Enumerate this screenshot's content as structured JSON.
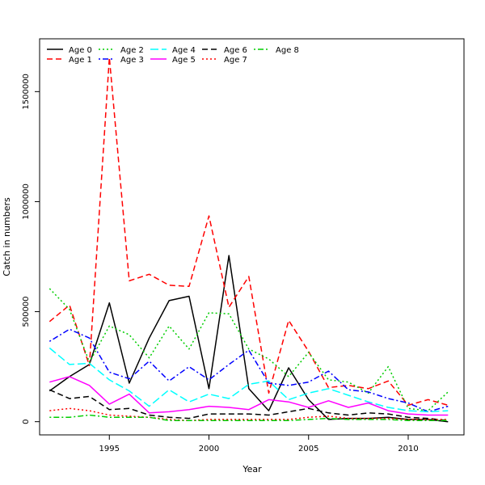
{
  "chart_data": {
    "type": "line",
    "title": "",
    "xlabel": "Year",
    "ylabel": "Catch in numbers",
    "xlim": [
      1991.5,
      2012.8
    ],
    "ylim": [
      -60000,
      1740000
    ],
    "xticks": [
      1995,
      2000,
      2005,
      2010
    ],
    "yticks": [
      0,
      500000,
      1000000,
      1500000
    ],
    "ytick_labels": [
      "0",
      "500000",
      "1000000",
      "1500000"
    ],
    "grid": false,
    "legend_position": "top-left",
    "x": [
      1992,
      1993,
      1994,
      1995,
      1996,
      1997,
      1998,
      1999,
      2000,
      2001,
      2002,
      2003,
      2004,
      2005,
      2006,
      2007,
      2008,
      2009,
      2010,
      2011,
      2012
    ],
    "series": [
      {
        "name": "Age 0",
        "color": "#000000",
        "dash": "solid",
        "values": [
          140000,
          205000,
          260000,
          540000,
          175000,
          380000,
          550000,
          570000,
          150000,
          755000,
          150000,
          50000,
          245000,
          100000,
          10000,
          15000,
          15000,
          20000,
          10000,
          10000,
          0
        ]
      },
      {
        "name": "Age 1",
        "color": "#ff0000",
        "dash": "dashed",
        "values": [
          455000,
          530000,
          255000,
          1655000,
          640000,
          670000,
          620000,
          615000,
          935000,
          520000,
          660000,
          130000,
          460000,
          320000,
          155000,
          165000,
          150000,
          185000,
          75000,
          100000,
          75000
        ]
      },
      {
        "name": "Age 2",
        "color": "#00cd00",
        "dash": "dotted",
        "values": [
          605000,
          510000,
          270000,
          435000,
          395000,
          290000,
          435000,
          330000,
          495000,
          490000,
          330000,
          285000,
          205000,
          315000,
          190000,
          180000,
          130000,
          250000,
          60000,
          50000,
          135000
        ]
      },
      {
        "name": "Age 3",
        "color": "#0000ff",
        "dash": "dashdot",
        "values": [
          365000,
          420000,
          380000,
          225000,
          195000,
          275000,
          185000,
          250000,
          190000,
          260000,
          325000,
          175000,
          165000,
          180000,
          230000,
          145000,
          135000,
          105000,
          85000,
          45000,
          70000
        ]
      },
      {
        "name": "Age 4",
        "color": "#00ffff",
        "dash": "longdash",
        "values": [
          335000,
          260000,
          265000,
          190000,
          140000,
          70000,
          145000,
          90000,
          125000,
          105000,
          170000,
          185000,
          100000,
          130000,
          150000,
          120000,
          90000,
          65000,
          50000,
          45000,
          50000
        ]
      },
      {
        "name": "Age 5",
        "color": "#ff00ff",
        "dash": "solid",
        "values": [
          180000,
          205000,
          165000,
          80000,
          125000,
          40000,
          45000,
          55000,
          70000,
          65000,
          55000,
          100000,
          90000,
          65000,
          95000,
          65000,
          85000,
          50000,
          35000,
          30000,
          30000
        ]
      },
      {
        "name": "Age 6",
        "color": "#000000",
        "dash": "dashed",
        "values": [
          145000,
          105000,
          115000,
          55000,
          60000,
          30000,
          20000,
          15000,
          35000,
          35000,
          35000,
          30000,
          45000,
          60000,
          40000,
          30000,
          40000,
          35000,
          20000,
          15000,
          5000
        ]
      },
      {
        "name": "Age 7",
        "color": "#ff0000",
        "dash": "dotted",
        "values": [
          50000,
          60000,
          50000,
          30000,
          25000,
          20000,
          10000,
          5000,
          10000,
          10000,
          10000,
          10000,
          10000,
          20000,
          25000,
          15000,
          15000,
          15000,
          10000,
          10000,
          10000
        ]
      },
      {
        "name": "Age 8",
        "color": "#00cd00",
        "dash": "dashdot",
        "values": [
          20000,
          20000,
          30000,
          20000,
          20000,
          20000,
          5000,
          5000,
          5000,
          5000,
          5000,
          5000,
          5000,
          10000,
          15000,
          10000,
          10000,
          10000,
          5000,
          5000,
          5000
        ]
      }
    ]
  }
}
